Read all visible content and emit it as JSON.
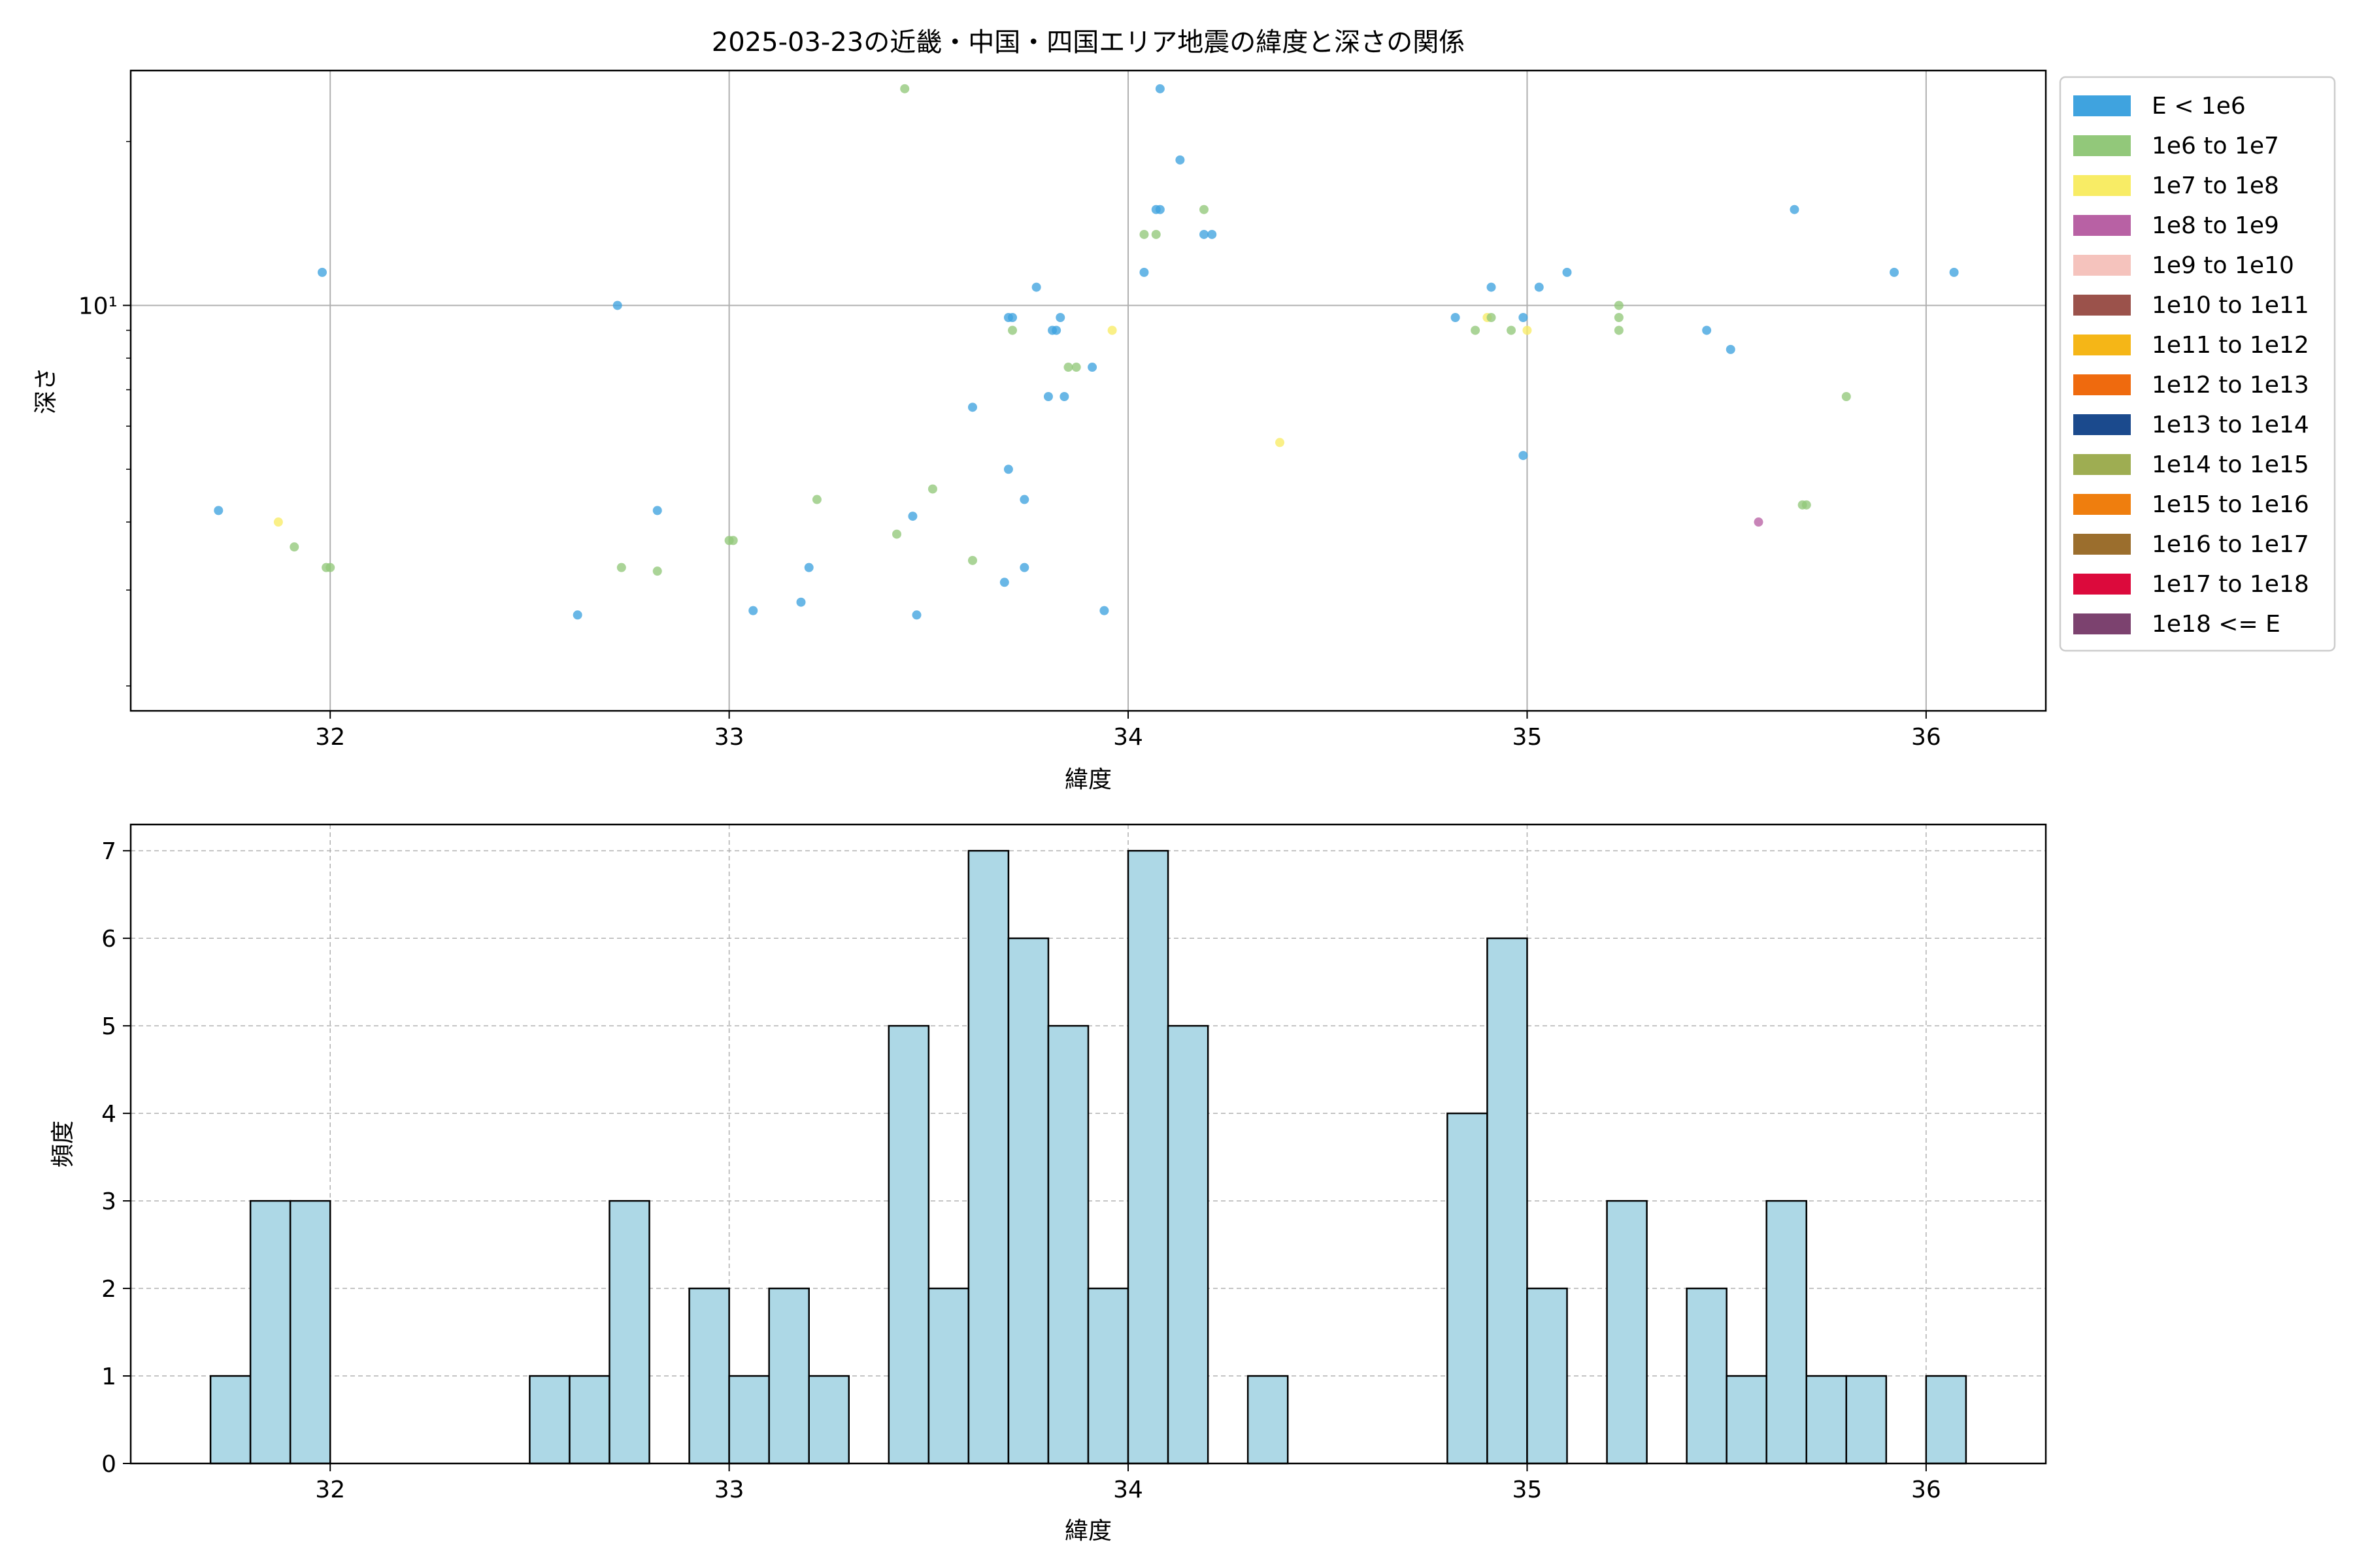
{
  "chart_data": [
    {
      "type": "scatter",
      "title": "2025-03-23の近畿・中国・四国エリア地震の緯度と深さの関係",
      "xlabel": "緯度",
      "ylabel": "深さ",
      "xlim": [
        31.5,
        36.3
      ],
      "ylim": [
        1.8,
        27
      ],
      "yscale": "log",
      "xticks": [
        32,
        33,
        34,
        35,
        36
      ],
      "xtick_labels": [
        "32",
        "33",
        "34",
        "35",
        "36"
      ],
      "yticks": [
        10
      ],
      "ytick_labels": [
        "10¹"
      ],
      "grid": true,
      "legend_position": "outside-right",
      "legend": [
        {
          "label": "E < 1e6",
          "color": "#3fa3df"
        },
        {
          "label": "1e6 to 1e7",
          "color": "#92c87a"
        },
        {
          "label": "1e7 to 1e8",
          "color": "#f8ec65"
        },
        {
          "label": "1e8 to 1e9",
          "color": "#b861a4"
        },
        {
          "label": "1e9 to 1e10",
          "color": "#f5c3bd"
        },
        {
          "label": "1e10 to 1e11",
          "color": "#9b524b"
        },
        {
          "label": "1e11 to 1e12",
          "color": "#f5b617"
        },
        {
          "label": "1e12 to 1e13",
          "color": "#ef6a0e"
        },
        {
          "label": "1e13 to 1e14",
          "color": "#1b4a8d"
        },
        {
          "label": "1e14 to 1e15",
          "color": "#9ead52"
        },
        {
          "label": "1e15 to 1e16",
          "color": "#ef7e0e"
        },
        {
          "label": "1e16 to 1e17",
          "color": "#9b6e2d"
        },
        {
          "label": "1e17 to 1e18",
          "color": "#dc0a3c"
        },
        {
          "label": "1e18 <= E",
          "color": "#7c426f"
        }
      ],
      "points": [
        {
          "x": 31.72,
          "y": 4.2,
          "c": 0
        },
        {
          "x": 31.87,
          "y": 4.0,
          "c": 2
        },
        {
          "x": 31.91,
          "y": 3.6,
          "c": 1
        },
        {
          "x": 31.98,
          "y": 11.5,
          "c": 0
        },
        {
          "x": 31.99,
          "y": 3.3,
          "c": 1
        },
        {
          "x": 32.0,
          "y": 3.3,
          "c": 1
        },
        {
          "x": 32.62,
          "y": 2.7,
          "c": 0
        },
        {
          "x": 32.72,
          "y": 10.0,
          "c": 0
        },
        {
          "x": 32.73,
          "y": 3.3,
          "c": 1
        },
        {
          "x": 32.82,
          "y": 4.2,
          "c": 0
        },
        {
          "x": 32.82,
          "y": 3.25,
          "c": 1
        },
        {
          "x": 33.0,
          "y": 3.7,
          "c": 1
        },
        {
          "x": 33.01,
          "y": 3.7,
          "c": 1
        },
        {
          "x": 33.06,
          "y": 2.75,
          "c": 0
        },
        {
          "x": 33.18,
          "y": 2.85,
          "c": 0
        },
        {
          "x": 33.2,
          "y": 3.3,
          "c": 0
        },
        {
          "x": 33.22,
          "y": 4.4,
          "c": 1
        },
        {
          "x": 33.42,
          "y": 3.8,
          "c": 1
        },
        {
          "x": 33.44,
          "y": 25.0,
          "c": 1
        },
        {
          "x": 33.46,
          "y": 4.1,
          "c": 0
        },
        {
          "x": 33.47,
          "y": 2.7,
          "c": 0
        },
        {
          "x": 33.51,
          "y": 4.6,
          "c": 1
        },
        {
          "x": 33.61,
          "y": 3.4,
          "c": 1
        },
        {
          "x": 33.61,
          "y": 6.5,
          "c": 0
        },
        {
          "x": 33.69,
          "y": 3.1,
          "c": 0
        },
        {
          "x": 33.7,
          "y": 5.0,
          "c": 0
        },
        {
          "x": 33.7,
          "y": 9.5,
          "c": 0
        },
        {
          "x": 33.71,
          "y": 9.5,
          "c": 0
        },
        {
          "x": 33.71,
          "y": 9.0,
          "c": 1
        },
        {
          "x": 33.74,
          "y": 3.3,
          "c": 0
        },
        {
          "x": 33.74,
          "y": 4.4,
          "c": 0
        },
        {
          "x": 33.77,
          "y": 10.8,
          "c": 0
        },
        {
          "x": 33.8,
          "y": 6.8,
          "c": 0
        },
        {
          "x": 33.81,
          "y": 9.0,
          "c": 0
        },
        {
          "x": 33.82,
          "y": 9.0,
          "c": 0
        },
        {
          "x": 33.83,
          "y": 9.5,
          "c": 0
        },
        {
          "x": 33.84,
          "y": 6.8,
          "c": 0
        },
        {
          "x": 33.85,
          "y": 7.7,
          "c": 1
        },
        {
          "x": 33.87,
          "y": 7.7,
          "c": 1
        },
        {
          "x": 33.91,
          "y": 7.7,
          "c": 0
        },
        {
          "x": 33.94,
          "y": 2.75,
          "c": 0
        },
        {
          "x": 33.96,
          "y": 9.0,
          "c": 2
        },
        {
          "x": 34.04,
          "y": 11.5,
          "c": 0
        },
        {
          "x": 34.04,
          "y": 13.5,
          "c": 1
        },
        {
          "x": 34.07,
          "y": 15.0,
          "c": 0
        },
        {
          "x": 34.07,
          "y": 13.5,
          "c": 1
        },
        {
          "x": 34.08,
          "y": 25.0,
          "c": 0
        },
        {
          "x": 34.08,
          "y": 15.0,
          "c": 0
        },
        {
          "x": 34.13,
          "y": 18.5,
          "c": 0
        },
        {
          "x": 34.19,
          "y": 15.0,
          "c": 1
        },
        {
          "x": 34.19,
          "y": 13.5,
          "c": 0
        },
        {
          "x": 34.21,
          "y": 13.5,
          "c": 0
        },
        {
          "x": 34.38,
          "y": 5.6,
          "c": 2
        },
        {
          "x": 34.82,
          "y": 9.5,
          "c": 0
        },
        {
          "x": 34.87,
          "y": 9.0,
          "c": 1
        },
        {
          "x": 34.9,
          "y": 9.5,
          "c": 2
        },
        {
          "x": 34.91,
          "y": 9.5,
          "c": 1
        },
        {
          "x": 34.91,
          "y": 10.8,
          "c": 0
        },
        {
          "x": 34.96,
          "y": 9.0,
          "c": 1
        },
        {
          "x": 34.99,
          "y": 5.3,
          "c": 0
        },
        {
          "x": 34.99,
          "y": 9.5,
          "c": 0
        },
        {
          "x": 35.0,
          "y": 9.0,
          "c": 2
        },
        {
          "x": 35.03,
          "y": 10.8,
          "c": 0
        },
        {
          "x": 35.1,
          "y": 11.5,
          "c": 0
        },
        {
          "x": 35.23,
          "y": 10.0,
          "c": 1
        },
        {
          "x": 35.23,
          "y": 9.5,
          "c": 1
        },
        {
          "x": 35.23,
          "y": 9.0,
          "c": 1
        },
        {
          "x": 35.45,
          "y": 9.0,
          "c": 0
        },
        {
          "x": 35.51,
          "y": 8.3,
          "c": 0
        },
        {
          "x": 35.58,
          "y": 4.0,
          "c": 3
        },
        {
          "x": 35.67,
          "y": 15.0,
          "c": 0
        },
        {
          "x": 35.69,
          "y": 4.3,
          "c": 1
        },
        {
          "x": 35.7,
          "y": 4.3,
          "c": 1
        },
        {
          "x": 35.8,
          "y": 6.8,
          "c": 1
        },
        {
          "x": 35.92,
          "y": 11.5,
          "c": 0
        },
        {
          "x": 36.07,
          "y": 11.5,
          "c": 0
        }
      ]
    },
    {
      "type": "bar",
      "subtype": "histogram",
      "xlabel": "緯度",
      "ylabel": "頻度",
      "xlim": [
        31.5,
        36.3
      ],
      "ylim": [
        0,
        7.3
      ],
      "xticks": [
        32,
        33,
        34,
        35,
        36
      ],
      "xtick_labels": [
        "32",
        "33",
        "34",
        "35",
        "36"
      ],
      "yticks": [
        0,
        1,
        2,
        3,
        4,
        5,
        6,
        7
      ],
      "ytick_labels": [
        "0",
        "1",
        "2",
        "3",
        "4",
        "5",
        "6",
        "7"
      ],
      "grid": true,
      "bar_color": "#add8e6",
      "edge_color": "#000000",
      "bin_start": 31.7,
      "bin_width": 0.1,
      "values": [
        1,
        3,
        3,
        0,
        0,
        0,
        0,
        0,
        1,
        1,
        3,
        0,
        2,
        1,
        2,
        1,
        0,
        5,
        2,
        7,
        6,
        5,
        2,
        7,
        5,
        0,
        1,
        0,
        0,
        0,
        0,
        4,
        6,
        2,
        0,
        3,
        0,
        2,
        1,
        3,
        1,
        1,
        0,
        1
      ]
    }
  ]
}
